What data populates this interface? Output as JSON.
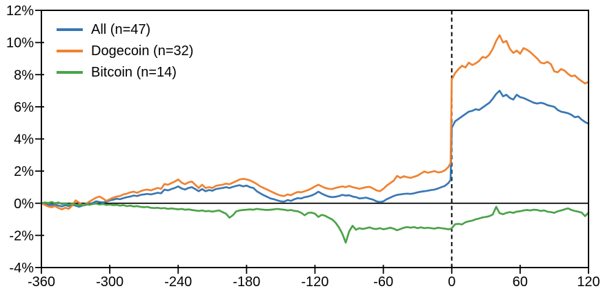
{
  "chart_data": {
    "type": "line",
    "title": "",
    "xlabel": "",
    "ylabel": "",
    "xlim": [
      -360,
      120
    ],
    "ylim": [
      -4,
      12
    ],
    "grid": false,
    "legend_position": "top-left",
    "x_ticks": [
      -360,
      -300,
      -240,
      -180,
      -120,
      -60,
      0,
      60,
      120
    ],
    "x_tick_labels": [
      "-360",
      "-300",
      "-240",
      "-180",
      "-120",
      "-60",
      "0",
      "60",
      "120"
    ],
    "y_ticks": [
      -4,
      -2,
      0,
      2,
      4,
      6,
      8,
      10,
      12
    ],
    "y_tick_labels": [
      "-4%",
      "-2%",
      "0%",
      "2%",
      "4%",
      "6%",
      "8%",
      "10%",
      "12%"
    ],
    "zero_line": {
      "y": 0
    },
    "event_line": {
      "x": 0,
      "style": "dashed"
    },
    "x": [
      -360,
      -357,
      -354,
      -351,
      -348,
      -345,
      -342,
      -339,
      -336,
      -333,
      -330,
      -327,
      -324,
      -321,
      -318,
      -315,
      -312,
      -309,
      -306,
      -303,
      -300,
      -297,
      -294,
      -291,
      -288,
      -285,
      -282,
      -279,
      -276,
      -273,
      -270,
      -267,
      -264,
      -261,
      -258,
      -255,
      -252,
      -249,
      -246,
      -243,
      -240,
      -237,
      -234,
      -231,
      -228,
      -225,
      -222,
      -219,
      -216,
      -213,
      -210,
      -207,
      -204,
      -201,
      -198,
      -195,
      -192,
      -189,
      -186,
      -183,
      -180,
      -177,
      -174,
      -171,
      -168,
      -165,
      -162,
      -159,
      -156,
      -153,
      -150,
      -147,
      -144,
      -141,
      -138,
      -135,
      -132,
      -129,
      -126,
      -123,
      -120,
      -117,
      -114,
      -111,
      -108,
      -105,
      -102,
      -99,
      -96,
      -93,
      -90,
      -87,
      -84,
      -81,
      -78,
      -75,
      -72,
      -69,
      -66,
      -63,
      -60,
      -57,
      -54,
      -51,
      -48,
      -45,
      -42,
      -39,
      -36,
      -33,
      -30,
      -27,
      -24,
      -21,
      -18,
      -15,
      -12,
      -9,
      -6,
      -3,
      -1,
      0,
      3,
      6,
      9,
      12,
      15,
      18,
      21,
      24,
      27,
      30,
      33,
      36,
      39,
      42,
      45,
      48,
      51,
      54,
      57,
      60,
      63,
      66,
      69,
      72,
      75,
      78,
      81,
      84,
      87,
      90,
      93,
      96,
      99,
      102,
      105,
      108,
      111,
      114,
      117,
      120
    ],
    "series": [
      {
        "name": "All (n=47)",
        "color": "#3878b4",
        "values": [
          0.0,
          -0.05,
          -0.1,
          -0.12,
          -0.08,
          -0.15,
          -0.2,
          -0.12,
          -0.18,
          -0.1,
          -0.15,
          -0.22,
          -0.15,
          -0.1,
          -0.05,
          0.02,
          0.12,
          0.08,
          0.05,
          0.1,
          0.18,
          0.22,
          0.28,
          0.25,
          0.32,
          0.38,
          0.42,
          0.48,
          0.45,
          0.52,
          0.55,
          0.58,
          0.55,
          0.6,
          0.65,
          0.62,
          0.85,
          0.8,
          0.88,
          0.95,
          1.05,
          0.92,
          0.85,
          0.95,
          1.0,
          0.88,
          0.75,
          0.88,
          0.75,
          0.82,
          0.78,
          0.88,
          0.92,
          0.95,
          1.0,
          0.95,
          1.02,
          1.08,
          1.12,
          1.05,
          1.1,
          1.0,
          0.95,
          0.75,
          0.62,
          0.5,
          0.4,
          0.3,
          0.25,
          0.18,
          0.12,
          0.1,
          0.2,
          0.15,
          0.25,
          0.32,
          0.3,
          0.38,
          0.42,
          0.48,
          0.58,
          0.72,
          0.6,
          0.5,
          0.42,
          0.38,
          0.4,
          0.45,
          0.52,
          0.48,
          0.5,
          0.42,
          0.38,
          0.3,
          0.32,
          0.35,
          0.28,
          0.22,
          0.12,
          0.08,
          0.12,
          0.25,
          0.35,
          0.45,
          0.52,
          0.55,
          0.58,
          0.6,
          0.58,
          0.62,
          0.68,
          0.72,
          0.75,
          0.78,
          0.82,
          0.85,
          0.92,
          1.0,
          1.08,
          1.25,
          1.45,
          4.7,
          5.1,
          5.25,
          5.4,
          5.55,
          5.7,
          5.75,
          5.85,
          5.8,
          5.95,
          6.1,
          6.25,
          6.5,
          6.8,
          7.0,
          6.65,
          6.75,
          6.55,
          6.45,
          6.75,
          6.6,
          6.55,
          6.45,
          6.35,
          6.25,
          6.2,
          6.25,
          6.2,
          6.1,
          6.05,
          6.0,
          5.8,
          5.7,
          5.65,
          5.6,
          5.5,
          5.35,
          5.4,
          5.2,
          5.05,
          4.95
        ]
      },
      {
        "name": "Dogecoin (n=32)",
        "color": "#ef8230",
        "values": [
          0.0,
          -0.1,
          -0.2,
          -0.25,
          -0.18,
          -0.3,
          -0.38,
          -0.28,
          -0.35,
          -0.15,
          0.18,
          0.05,
          -0.12,
          -0.05,
          0.1,
          0.22,
          0.35,
          0.42,
          0.3,
          0.15,
          0.25,
          0.35,
          0.42,
          0.45,
          0.55,
          0.6,
          0.68,
          0.72,
          0.65,
          0.75,
          0.82,
          0.85,
          0.8,
          0.88,
          0.95,
          0.9,
          1.2,
          1.15,
          1.25,
          1.35,
          1.48,
          1.28,
          1.18,
          1.3,
          1.35,
          1.15,
          0.95,
          1.15,
          0.95,
          1.0,
          0.95,
          1.08,
          1.12,
          1.15,
          1.22,
          1.18,
          1.28,
          1.38,
          1.48,
          1.52,
          1.48,
          1.42,
          1.32,
          1.2,
          1.05,
          0.95,
          0.85,
          0.75,
          0.65,
          0.55,
          0.48,
          0.45,
          0.55,
          0.5,
          0.62,
          0.7,
          0.68,
          0.75,
          0.82,
          0.92,
          1.05,
          1.15,
          1.05,
          0.95,
          0.9,
          0.88,
          0.95,
          1.0,
          1.05,
          1.0,
          1.08,
          1.0,
          0.95,
          0.9,
          0.95,
          1.0,
          1.02,
          0.92,
          0.8,
          0.75,
          0.9,
          1.1,
          1.25,
          1.4,
          1.7,
          1.58,
          1.68,
          1.62,
          1.58,
          1.65,
          1.72,
          1.85,
          1.98,
          1.9,
          1.95,
          2.0,
          1.92,
          1.95,
          2.05,
          2.25,
          2.5,
          7.7,
          8.1,
          8.35,
          8.55,
          8.45,
          8.75,
          8.6,
          8.7,
          8.85,
          9.1,
          9.05,
          9.25,
          9.6,
          10.1,
          10.45,
          10.0,
          10.1,
          9.6,
          9.35,
          9.5,
          9.3,
          9.65,
          9.55,
          9.4,
          9.2,
          9.0,
          8.75,
          8.7,
          8.8,
          8.65,
          8.2,
          8.15,
          8.35,
          8.25,
          8.05,
          7.9,
          7.95,
          7.75,
          7.6,
          7.45,
          7.55
        ]
      },
      {
        "name": "Bitcoin (n=14)",
        "color": "#4aa348",
        "values": [
          0.0,
          0.05,
          0.02,
          0.08,
          0.0,
          0.05,
          -0.05,
          0.0,
          -0.08,
          -0.02,
          -0.08,
          -0.12,
          -0.08,
          -0.05,
          -0.1,
          -0.05,
          -0.02,
          -0.08,
          -0.05,
          -0.1,
          -0.08,
          -0.12,
          -0.1,
          -0.15,
          -0.12,
          -0.18,
          -0.15,
          -0.2,
          -0.18,
          -0.22,
          -0.25,
          -0.22,
          -0.28,
          -0.3,
          -0.28,
          -0.32,
          -0.3,
          -0.35,
          -0.32,
          -0.35,
          -0.38,
          -0.35,
          -0.4,
          -0.38,
          -0.42,
          -0.45,
          -0.48,
          -0.45,
          -0.5,
          -0.48,
          -0.52,
          -0.48,
          -0.45,
          -0.55,
          -0.65,
          -0.9,
          -0.75,
          -0.5,
          -0.45,
          -0.42,
          -0.4,
          -0.38,
          -0.4,
          -0.35,
          -0.38,
          -0.4,
          -0.42,
          -0.4,
          -0.38,
          -0.35,
          -0.38,
          -0.4,
          -0.45,
          -0.42,
          -0.48,
          -0.5,
          -0.6,
          -0.75,
          -0.6,
          -0.58,
          -0.65,
          -0.85,
          -0.72,
          -0.78,
          -0.9,
          -1.0,
          -1.2,
          -1.5,
          -1.9,
          -2.45,
          -1.75,
          -1.4,
          -1.65,
          -1.55,
          -1.6,
          -1.55,
          -1.5,
          -1.58,
          -1.6,
          -1.55,
          -1.62,
          -1.58,
          -1.52,
          -1.58,
          -1.68,
          -1.6,
          -1.52,
          -1.48,
          -1.52,
          -1.48,
          -1.55,
          -1.5,
          -1.55,
          -1.52,
          -1.55,
          -1.58,
          -1.52,
          -1.55,
          -1.58,
          -1.62,
          -1.6,
          -1.55,
          -1.3,
          -1.28,
          -1.32,
          -1.18,
          -1.12,
          -1.08,
          -1.0,
          -0.95,
          -0.88,
          -0.85,
          -0.8,
          -0.7,
          -0.22,
          -0.62,
          -0.68,
          -0.6,
          -0.55,
          -0.6,
          -0.52,
          -0.5,
          -0.45,
          -0.42,
          -0.45,
          -0.4,
          -0.42,
          -0.48,
          -0.45,
          -0.52,
          -0.55,
          -0.6,
          -0.5,
          -0.45,
          -0.38,
          -0.32,
          -0.42,
          -0.48,
          -0.52,
          -0.58,
          -0.8,
          -0.58
        ]
      }
    ]
  },
  "colors": {
    "axis": "#000000",
    "background": "#ffffff"
  }
}
